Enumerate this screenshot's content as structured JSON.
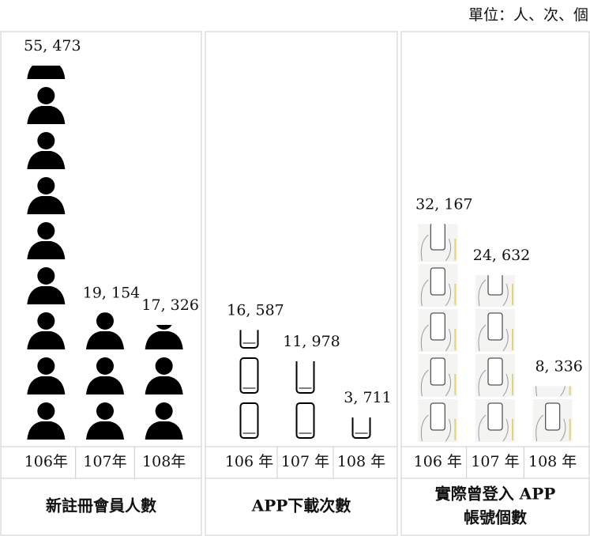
{
  "unit": "單位：人、次、個",
  "chart_data": [
    {
      "type": "pictograph",
      "title": [
        "新註冊會員人數"
      ],
      "categories": [
        "106年",
        "107年",
        "108年"
      ],
      "values": [
        55473,
        19154,
        17326
      ],
      "value_labels": [
        "55, 473",
        "19, 154",
        "17, 326"
      ]
    },
    {
      "type": "pictograph",
      "title": [
        "APP下載次數"
      ],
      "categories": [
        "106 年",
        "107 年",
        "108 年"
      ],
      "values": [
        16587,
        11978,
        3711
      ],
      "value_labels": [
        "16, 587",
        "11, 978",
        "3, 711"
      ]
    },
    {
      "type": "pictograph",
      "title": [
        "實際曾登入 APP",
        "帳號個數"
      ],
      "categories": [
        "106 年",
        "107 年",
        "108 年"
      ],
      "values": [
        32167,
        24632,
        8336
      ],
      "value_labels": [
        "32, 167",
        "24, 632",
        "8, 336"
      ]
    }
  ]
}
